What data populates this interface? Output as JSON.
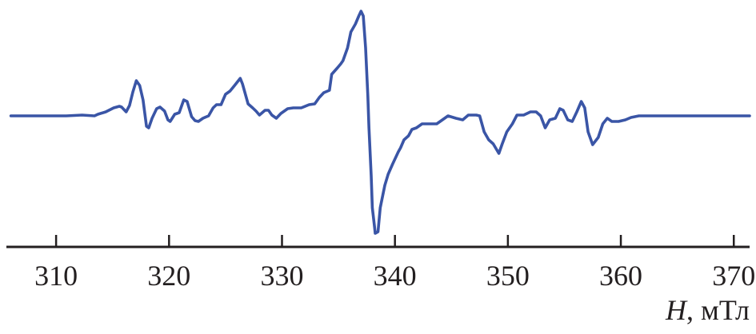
{
  "chart_data": {
    "type": "line",
    "title": "",
    "xlabel_symbol": "H",
    "xlabel_unit": ", мТл",
    "ylabel": "",
    "xlim": [
      305.6,
      371.4
    ],
    "xticks": [
      310,
      320,
      330,
      340,
      350,
      360,
      370
    ],
    "xtick_labels": [
      "310",
      "320",
      "330",
      "340",
      "350",
      "360",
      "370"
    ],
    "grid": false,
    "line_color": "#3a55a6",
    "axis_color": "#231f20",
    "series": [
      {
        "x": [
          306.0,
          310.9,
          312.3,
          313.4,
          313.7,
          314.4,
          315.1,
          315.6,
          315.8,
          316.2,
          316.5,
          316.8,
          317.1,
          317.4,
          317.7,
          318.0,
          318.2,
          318.5,
          318.9,
          319.2,
          319.6,
          319.9,
          320.1,
          320.5,
          320.9,
          321.3,
          321.6,
          322.0,
          322.3,
          322.6,
          323.0,
          323.5,
          323.9,
          324.2,
          324.6,
          325.0,
          325.4,
          325.8,
          326.3,
          326.5,
          327.0,
          327.4,
          327.7,
          328.0,
          328.5,
          328.8,
          329.1,
          329.5,
          329.9,
          330.5,
          331.0,
          331.7,
          332.4,
          332.9,
          333.3,
          333.7,
          334.2,
          334.4,
          334.9,
          335.2,
          335.4,
          335.8,
          336.1,
          336.5,
          336.8,
          337.0,
          337.2,
          337.4,
          337.6,
          337.7,
          337.9,
          338.0,
          338.2,
          338.25,
          338.5,
          338.7,
          339.1,
          339.4,
          339.8,
          340.3,
          340.5,
          340.8,
          341.2,
          341.5,
          341.9,
          342.4,
          343.0,
          343.7,
          344.2,
          344.7,
          345.4,
          346.0,
          346.5,
          347.2,
          347.5,
          347.9,
          348.3,
          348.7,
          349.2,
          349.5,
          349.9,
          350.4,
          350.8,
          351.4,
          352.0,
          352.5,
          352.9,
          353.3,
          353.7,
          354.2,
          354.6,
          354.9,
          355.3,
          355.7,
          356.1,
          356.5,
          356.8,
          357.1,
          357.5,
          358.0,
          358.4,
          358.8,
          359.2,
          359.8,
          360.4,
          360.9,
          361.6,
          371.5
        ],
        "y": [
          0,
          0,
          1,
          0,
          2,
          5,
          10,
          12,
          11,
          5,
          13,
          30,
          44,
          38,
          20,
          -13,
          -15,
          -3,
          9,
          11,
          6,
          -5,
          -7,
          2,
          4,
          20,
          18,
          -1,
          -6,
          -7,
          -3,
          0,
          10,
          14,
          14,
          27,
          31,
          38,
          47,
          40,
          15,
          10,
          6,
          1,
          7,
          7,
          1,
          -3,
          3,
          9,
          10,
          10,
          14,
          15,
          23,
          29,
          32,
          52,
          60,
          65,
          69,
          85,
          105,
          115,
          125,
          131,
          125,
          85,
          25,
          -15,
          -75,
          -115,
          -140,
          -147,
          -145,
          -115,
          -87,
          -73,
          -60,
          -45,
          -40,
          -30,
          -25,
          -17,
          -15,
          -10,
          -10,
          -10,
          -5,
          0,
          -3,
          -5,
          1,
          1,
          0,
          -20,
          -30,
          -35,
          -47,
          -35,
          -20,
          -10,
          1,
          1,
          5,
          5,
          0,
          -15,
          -5,
          -3,
          9,
          7,
          -5,
          -7,
          5,
          18,
          10,
          -20,
          -36,
          -27,
          -10,
          -3,
          -7,
          -7,
          -5,
          -2,
          0,
          0
        ]
      }
    ]
  }
}
